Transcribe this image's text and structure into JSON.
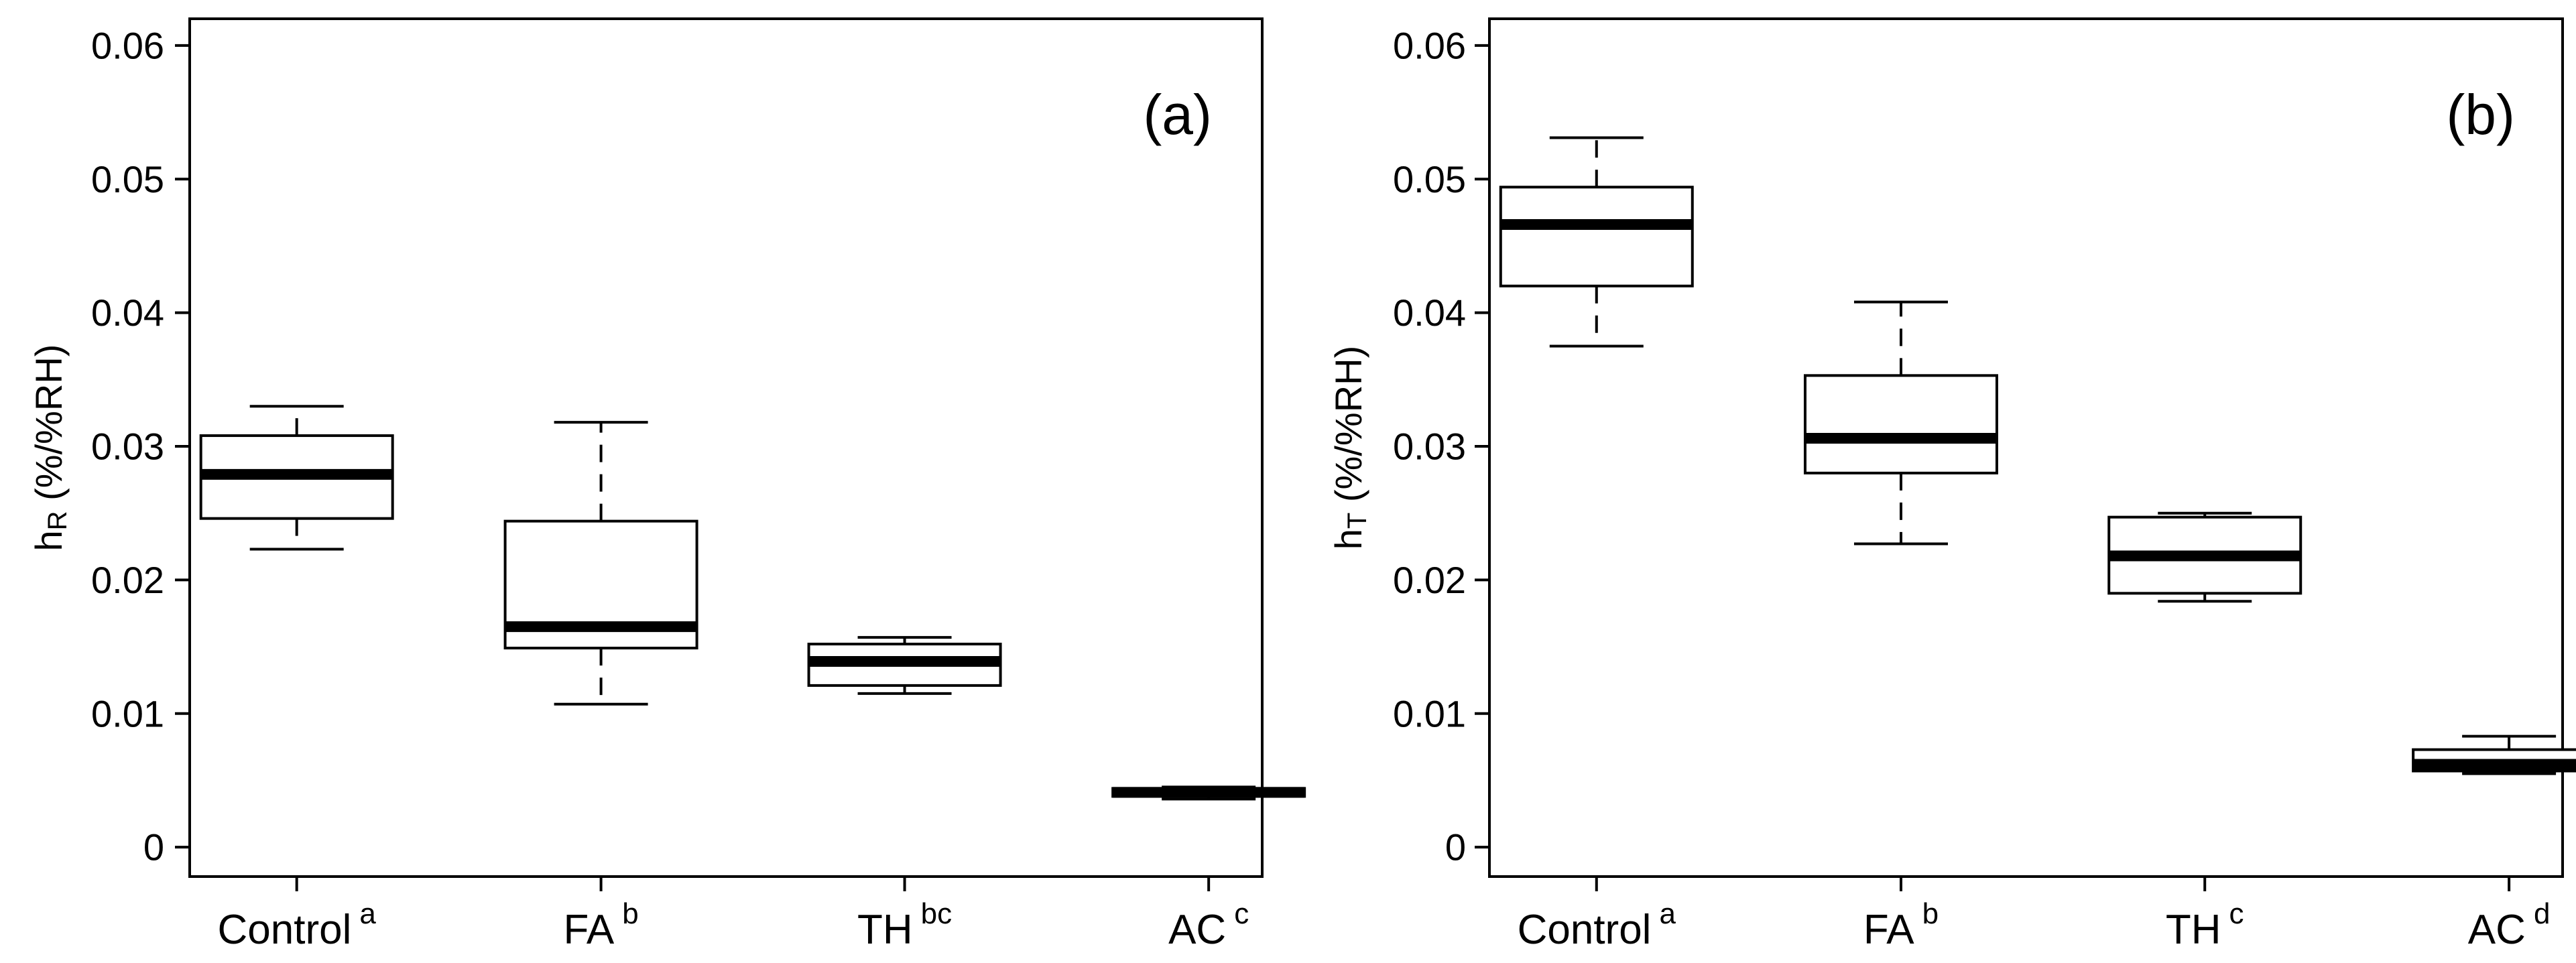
{
  "chart_data": [
    {
      "type": "boxplot",
      "panel_label": "(a)",
      "ylabel": {
        "base": "h",
        "sub": "R",
        "rest": " (%/%RH)"
      },
      "ylim": [
        -0.0022,
        0.062
      ],
      "yticks": [
        "0",
        "0.01",
        "0.02",
        "0.03",
        "0.04",
        "0.05",
        "0.06"
      ],
      "grid": false,
      "categories": [
        {
          "name": "Control",
          "sup": "a"
        },
        {
          "name": "FA",
          "sup": "b"
        },
        {
          "name": "TH",
          "sup": "bc"
        },
        {
          "name": "AC",
          "sup": "c"
        }
      ],
      "boxes": [
        {
          "whisker_low": 0.0223,
          "q1": 0.0246,
          "median": 0.0279,
          "q3": 0.0308,
          "whisker_high": 0.033
        },
        {
          "whisker_low": 0.0107,
          "q1": 0.0149,
          "median": 0.0165,
          "q3": 0.0244,
          "whisker_high": 0.0318
        },
        {
          "whisker_low": 0.0115,
          "q1": 0.0121,
          "median": 0.0139,
          "q3": 0.0152,
          "whisker_high": 0.0157
        },
        {
          "whisker_low": 0.0036,
          "q1": 0.0038,
          "median": 0.0041,
          "q3": 0.0044,
          "whisker_high": 0.0045
        }
      ]
    },
    {
      "type": "boxplot",
      "panel_label": "(b)",
      "ylabel": {
        "base": "h",
        "sub": "T",
        "rest": " (%/%RH)"
      },
      "ylim": [
        -0.0022,
        0.062
      ],
      "yticks": [
        "0",
        "0.01",
        "0.02",
        "0.03",
        "0.04",
        "0.05",
        "0.06"
      ],
      "grid": false,
      "categories": [
        {
          "name": "Control",
          "sup": "a"
        },
        {
          "name": "FA",
          "sup": "b"
        },
        {
          "name": "TH",
          "sup": "c"
        },
        {
          "name": "AC",
          "sup": "d"
        }
      ],
      "boxes": [
        {
          "whisker_low": 0.0375,
          "q1": 0.042,
          "median": 0.0466,
          "q3": 0.0494,
          "whisker_high": 0.0531
        },
        {
          "whisker_low": 0.0227,
          "q1": 0.028,
          "median": 0.0306,
          "q3": 0.0353,
          "whisker_high": 0.0408
        },
        {
          "whisker_low": 0.0184,
          "q1": 0.019,
          "median": 0.0218,
          "q3": 0.0247,
          "whisker_high": 0.025
        },
        {
          "whisker_low": 0.0055,
          "q1": 0.0057,
          "median": 0.0062,
          "q3": 0.0073,
          "whisker_high": 0.0083
        }
      ]
    }
  ]
}
